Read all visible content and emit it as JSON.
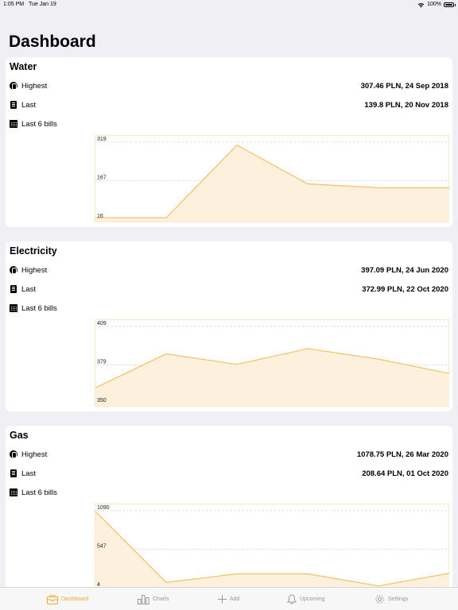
{
  "status_bar": {
    "time": "1:05 PM",
    "date": "Tue Jan 19",
    "battery": "100%",
    "icons": [
      "wifi-icon",
      "battery-icon"
    ]
  },
  "page_title": "Dashboard",
  "colors": {
    "accent": "#f0a830",
    "chart_fill": "#fdf0dc",
    "chart_line": "#f5c060",
    "inactive": "#999999"
  },
  "cards": [
    {
      "title": "Water",
      "rows": [
        {
          "icon": "coin-icon",
          "label": "Highest",
          "value": "307.46 PLN, 24 Sep 2018"
        },
        {
          "icon": "receipt-icon",
          "label": "Last",
          "value": "139.8 PLN, 20 Nov 2018"
        },
        {
          "icon": "calendar-icon",
          "label": "Last 6 bills",
          "value": ""
        }
      ]
    },
    {
      "title": "Electricity",
      "rows": [
        {
          "icon": "coin-icon",
          "label": "Highest",
          "value": "397.09 PLN, 24 Jun 2020"
        },
        {
          "icon": "receipt-icon",
          "label": "Last",
          "value": "372.99 PLN, 22 Oct 2020"
        },
        {
          "icon": "calendar-icon",
          "label": "Last 6 bills",
          "value": ""
        }
      ]
    },
    {
      "title": "Gas",
      "rows": [
        {
          "icon": "coin-icon",
          "label": "Highest",
          "value": "1078.75 PLN, 26 Mar 2020"
        },
        {
          "icon": "receipt-icon",
          "label": "Last",
          "value": "208.64 PLN, 01 Oct 2020"
        },
        {
          "icon": "calendar-icon",
          "label": "Last 6 bills",
          "value": ""
        }
      ]
    }
  ],
  "chart_data": [
    {
      "type": "area",
      "y_ticks": [
        "319",
        "167",
        "16"
      ],
      "ylim": [
        16,
        319
      ],
      "values": [
        22,
        22,
        307.46,
        155,
        139.8,
        139.8
      ],
      "grid": true
    },
    {
      "type": "area",
      "y_ticks": [
        "409",
        "379",
        "350"
      ],
      "ylim": [
        350,
        409
      ],
      "values": [
        362,
        388,
        380,
        392,
        384,
        372.99
      ],
      "grid": true
    },
    {
      "type": "area",
      "y_ticks": [
        "1090",
        "547",
        "4"
      ],
      "ylim": [
        4,
        1090
      ],
      "values": [
        1078.75,
        80,
        200,
        200,
        30,
        208.64
      ],
      "grid": true
    }
  ],
  "tabs": [
    {
      "icon": "dashboard-icon",
      "label": "Dashboard",
      "active": true
    },
    {
      "icon": "charts-icon",
      "label": "Charts",
      "active": false
    },
    {
      "icon": "add-icon",
      "label": "Add",
      "active": false
    },
    {
      "icon": "bell-icon",
      "label": "Upcoming",
      "active": false
    },
    {
      "icon": "gear-icon",
      "label": "Settings",
      "active": false
    }
  ]
}
